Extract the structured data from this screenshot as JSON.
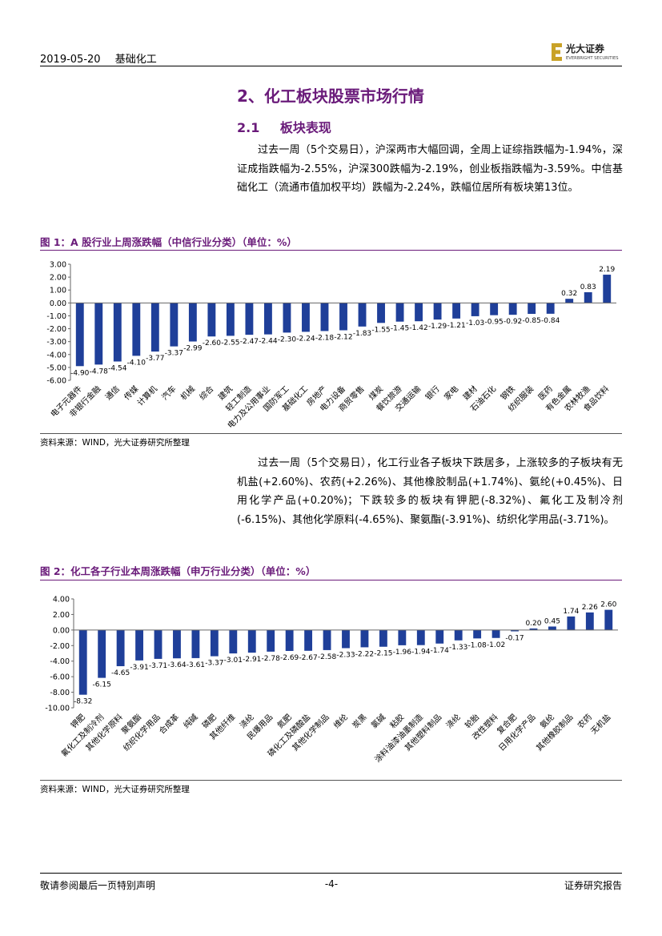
{
  "header": {
    "date": "2019-05-20",
    "category": "基础化工",
    "logo_text": "光大证券",
    "logo_subtext": "EVERBRIGHT SECURITIES"
  },
  "section": {
    "title": "2、化工板块股票市场行情",
    "sub_number": "2.1",
    "sub_title": "板块表现"
  },
  "paragraph1": "过去一周（5个交易日），沪深两市大幅回调，全周上证综指跌幅为-1.94%，深证成指跌幅为-2.55%，沪深300跌幅为-2.19%，创业板指跌幅为-3.59%。中信基础化工（流通市值加权平均）跌幅为-2.24%，跌幅位居所有板块第13位。",
  "paragraph2": "过去一周（5个交易日），化工行业各子板块下跌居多，上涨较多的子板块有无机盐(+2.60%)、农药(+2.26%)、其他橡胶制品(+1.74%)、氨纶(+0.45%)、日用化学产品(+0.20%)；下跌较多的板块有钾肥(-8.32%)、氟化工及制冷剂(-6.15%)、其他化学原料(-4.65%)、聚氨酯(-3.91%)、纺织化学用品(-3.71%)。",
  "figure1": {
    "title": "图 1：A 股行业上周涨跌幅（中信行业分类）（单位：%）",
    "source": "资料来源：WIND，光大证券研究所整理"
  },
  "figure2": {
    "title": "图 2：化工各子行业本周涨跌幅（申万行业分类）（单位：%）",
    "source": "资料来源：WIND，光大证券研究所整理"
  },
  "footer": {
    "left": "敬请参阅最后一页特别声明",
    "page": "-4-",
    "right": "证券研究报告"
  },
  "colors": {
    "accent": "#6a1b7a",
    "bar": "#1f3f99",
    "logo_gold": "#c9a227"
  },
  "chart_data": [
    {
      "type": "bar",
      "title": "",
      "xlabel": "",
      "ylabel": "",
      "ylim": [
        -6,
        3
      ],
      "yticks": [
        "3.00",
        "2.00",
        "1.00",
        "0.00",
        "-1.00",
        "-2.00",
        "-3.00",
        "-4.00",
        "-5.00",
        "-6.00"
      ],
      "categories": [
        "电子元器件",
        "非银行金融",
        "通信",
        "传媒",
        "计算机",
        "汽车",
        "机械",
        "综合",
        "建筑",
        "轻工制造",
        "电力及公用事业",
        "国防军工",
        "基础化工",
        "房地产",
        "电力设备",
        "商贸零售",
        "煤炭",
        "餐饮旅游",
        "交通运输",
        "银行",
        "家电",
        "建材",
        "石油石化",
        "钢铁",
        "纺织服装",
        "医药",
        "有色金属",
        "农林牧渔",
        "食品饮料"
      ],
      "values": [
        -4.9,
        -4.78,
        -4.54,
        -4.1,
        -3.77,
        -3.37,
        -2.99,
        -2.6,
        -2.55,
        -2.47,
        -2.44,
        -2.3,
        -2.24,
        -2.18,
        -2.12,
        -1.83,
        -1.55,
        -1.45,
        -1.42,
        -1.29,
        -1.21,
        -1.03,
        -0.95,
        -0.92,
        -0.85,
        -0.84,
        0.32,
        0.83,
        2.19
      ],
      "labels": [
        "-4.90",
        "-4.78",
        "-4.54",
        "-4.10",
        "-3.77",
        "-3.37",
        "-2.99",
        "-2.60",
        "-2.55",
        "-2.47",
        "-2.44",
        "-2.30",
        "-2.24",
        "-2.18",
        "-2.12",
        "-1.83",
        "-1.55",
        "-1.45",
        "-1.42",
        "-1.29",
        "-1.21",
        "-1.03",
        "-0.95",
        "-0.92",
        "-0.85",
        "-0.84",
        "0.32",
        "0.83",
        "2.19"
      ]
    },
    {
      "type": "bar",
      "title": "",
      "xlabel": "",
      "ylabel": "",
      "ylim": [
        -10,
        4
      ],
      "yticks": [
        "4.00",
        "2.00",
        "0.00",
        "-2.00",
        "-4.00",
        "-6.00",
        "-8.00",
        "-10.00"
      ],
      "categories": [
        "钾肥",
        "氟化工及制冷剂",
        "其他化学原料",
        "聚氨酯",
        "纺织化学用品",
        "合成革",
        "纯碱",
        "磷肥",
        "其他纤维",
        "涤纶",
        "民爆用品",
        "氮肥",
        "磷化工及磷酸盐",
        "其他化学制品",
        "维纶",
        "炭黑",
        "氯碱",
        "粘胶",
        "涂料油漆油墨制造",
        "其他塑料制品",
        "涤纶",
        "轮胎",
        "改性塑料",
        "复合肥",
        "日用化学产品",
        "氨纶",
        "其他橡胶制品",
        "农药",
        "无机盐"
      ],
      "values": [
        -8.32,
        -6.15,
        -4.65,
        -3.91,
        -3.71,
        -3.64,
        -3.61,
        -3.37,
        -3.01,
        -2.91,
        -2.78,
        -2.69,
        -2.67,
        -2.58,
        -2.33,
        -2.22,
        -2.15,
        -1.96,
        -1.94,
        -1.74,
        -1.33,
        -1.08,
        -1.02,
        -0.17,
        0.2,
        0.45,
        1.74,
        2.26,
        2.6
      ],
      "labels": [
        "-8.32",
        "-6.15",
        "-4.65",
        "-3.91",
        "-3.71",
        "-3.64",
        "-3.61",
        "-3.37",
        "-3.01",
        "-2.91",
        "-2.78",
        "-2.69",
        "-2.67",
        "-2.58",
        "-2.33",
        "-2.22",
        "-2.15",
        "-1.96",
        "-1.94",
        "-1.74",
        "-1.33",
        "-1.08",
        "-1.02",
        "-0.17",
        "0.20",
        "0.45",
        "1.74",
        "2.26",
        "2.60"
      ]
    }
  ]
}
